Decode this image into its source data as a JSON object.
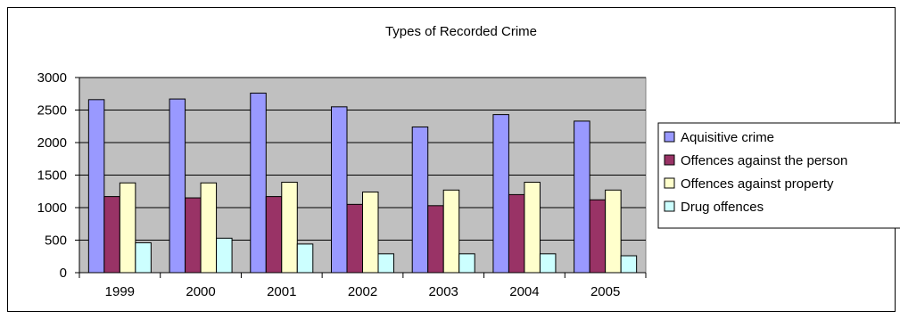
{
  "chart_data": {
    "type": "bar",
    "title": "Types of Recorded Crime",
    "xlabel": "",
    "ylabel": "",
    "categories": [
      "1999",
      "2000",
      "2001",
      "2002",
      "2003",
      "2004",
      "2005"
    ],
    "ylim": [
      0,
      3000
    ],
    "yticks": [
      0,
      500,
      1000,
      1500,
      2000,
      2500,
      3000
    ],
    "grid": true,
    "legend_position": "right",
    "plot_background": "#c0c0c0",
    "series": [
      {
        "name": "Aquisitive crime",
        "color": "#9999ff",
        "values": [
          2660,
          2670,
          2760,
          2550,
          2240,
          2430,
          2330
        ]
      },
      {
        "name": "Offences against the person",
        "color": "#993366",
        "values": [
          1170,
          1150,
          1170,
          1050,
          1030,
          1200,
          1120
        ]
      },
      {
        "name": "Offences against property",
        "color": "#ffffcc",
        "values": [
          1380,
          1380,
          1390,
          1240,
          1270,
          1390,
          1270
        ]
      },
      {
        "name": "Drug offences",
        "color": "#ccffff",
        "values": [
          460,
          530,
          440,
          290,
          290,
          290,
          260
        ]
      }
    ]
  }
}
